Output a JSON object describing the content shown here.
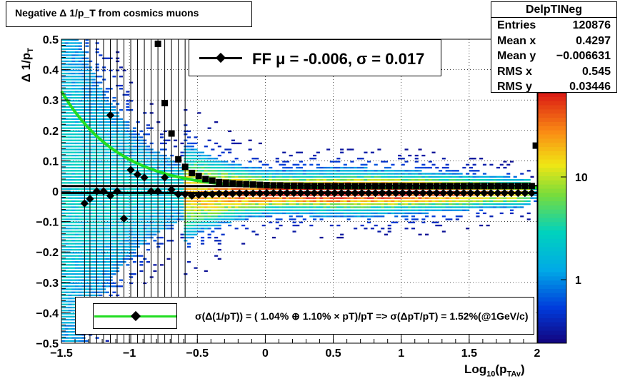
{
  "title": "Negative Δ 1/p_T from cosmics muons",
  "stats": {
    "name": "DelpTINeg",
    "rows": [
      {
        "label": "Entries",
        "value": "120876"
      },
      {
        "label": "Mean x",
        "value": "0.4297"
      },
      {
        "label": "Mean y",
        "value": "−0.006631"
      },
      {
        "label": "RMS x",
        "value": "0.545"
      },
      {
        "label": "RMS y",
        "value": "0.03446"
      }
    ]
  },
  "legend_top": "FF μ = -0.006, σ =   0.017",
  "legend_bottom": "σ(Δ(1/pT)) = ( 1.04% ⊕  1.10% × pT)/pT => σ(ΔpT/pT) =  1.52%(@1GeV/c)",
  "colors": {
    "fit_curve": "#22dd22",
    "markers": "#000000"
  },
  "chart_data": {
    "type": "heatmap",
    "title": "Negative Δ 1/p_T from cosmics muons",
    "xlabel": "Log10(pTAv)",
    "ylabel": "Δ 1/pT",
    "xlim": [
      -1.5,
      2
    ],
    "ylim": [
      -0.5,
      0.5
    ],
    "xticks": [
      "−1.5",
      "−1",
      "−0.5",
      "0",
      "0.5",
      "1",
      "1.5",
      "2"
    ],
    "yticks": [
      "−0.5",
      "−0.4",
      "−0.3",
      "−0.2",
      "−0.1",
      "0",
      "0.1",
      "0.2",
      "0.3",
      "0.4",
      "0.5"
    ],
    "colorbar_ticks": [
      "1",
      "10"
    ],
    "log_colorbar": true,
    "grid": true,
    "mean_points": {
      "x": [
        -1.33,
        -1.29,
        -1.24,
        -1.19,
        -1.14,
        -1.09,
        -1.04,
        -0.99,
        -0.94,
        -0.89,
        -0.84,
        -0.79,
        -0.74,
        -0.69,
        -0.64,
        -0.59,
        -0.54,
        -0.49,
        -0.44,
        -0.39,
        -0.34,
        -0.29,
        -0.24,
        -0.19,
        -0.14,
        -0.09,
        -0.04,
        0.01,
        0.06,
        0.11,
        0.16,
        0.21,
        0.26,
        0.31,
        0.36,
        0.41,
        0.46,
        0.51,
        0.56,
        0.61,
        0.66,
        0.71,
        0.76,
        0.81,
        0.86,
        0.91,
        0.96,
        1.01,
        1.06,
        1.11,
        1.16,
        1.21,
        1.26,
        1.31,
        1.36,
        1.41,
        1.46,
        1.51,
        1.56,
        1.61,
        1.66,
        1.71,
        1.76,
        1.81,
        1.86,
        1.91,
        1.96
      ],
      "y": [
        -0.04,
        -0.025,
        0.0,
        0.0,
        -0.015,
        0.0,
        -0.09,
        0.07,
        0.055,
        0.045,
        0.0,
        0.0,
        0.045,
        0.005,
        -0.01,
        -0.01,
        -0.015,
        -0.012,
        -0.01,
        -0.01,
        -0.008,
        -0.008,
        -0.008,
        -0.007,
        -0.007,
        -0.007,
        -0.007,
        -0.006,
        -0.006,
        -0.006,
        -0.006,
        -0.006,
        -0.006,
        -0.006,
        -0.006,
        -0.006,
        -0.006,
        -0.006,
        -0.006,
        -0.006,
        -0.006,
        -0.006,
        -0.006,
        -0.006,
        -0.006,
        -0.006,
        -0.006,
        -0.006,
        -0.006,
        -0.006,
        -0.006,
        -0.006,
        -0.006,
        -0.006,
        -0.006,
        -0.006,
        -0.006,
        -0.006,
        -0.006,
        -0.006,
        -0.006,
        -0.006,
        -0.006,
        -0.006,
        -0.006,
        -0.006,
        -0.006
      ]
    },
    "sigma_points": {
      "x": [
        -1.14,
        -0.79,
        -0.74,
        -0.69,
        -0.64,
        -0.59,
        -0.54,
        -0.49,
        -0.44,
        -0.39,
        -0.34,
        -0.29,
        -0.24,
        -0.19,
        -0.14,
        -0.09,
        -0.04,
        0.01,
        0.06,
        0.11,
        0.16,
        0.21,
        0.26,
        0.31,
        0.36,
        0.41,
        0.46,
        0.51,
        0.56,
        0.61,
        0.66,
        0.71,
        0.76,
        0.81,
        0.86,
        0.91,
        0.96,
        1.01,
        1.06,
        1.11,
        1.16,
        1.21,
        1.26,
        1.31,
        1.36,
        1.41,
        1.46,
        1.51,
        1.56,
        1.61,
        1.66,
        1.71,
        1.76,
        1.81,
        1.86,
        1.91,
        1.96,
        1.99
      ],
      "y": [
        0.25,
        0.485,
        0.29,
        0.19,
        0.105,
        0.08,
        0.06,
        0.05,
        0.04,
        0.035,
        0.03,
        0.028,
        0.026,
        0.024,
        0.023,
        0.022,
        0.021,
        0.02,
        0.019,
        0.019,
        0.018,
        0.018,
        0.018,
        0.017,
        0.017,
        0.017,
        0.017,
        0.017,
        0.017,
        0.017,
        0.017,
        0.017,
        0.017,
        0.017,
        0.017,
        0.017,
        0.017,
        0.017,
        0.017,
        0.017,
        0.017,
        0.017,
        0.017,
        0.017,
        0.017,
        0.017,
        0.017,
        0.017,
        0.017,
        0.017,
        0.017,
        0.017,
        0.017,
        0.017,
        0.017,
        0.017,
        0.017,
        0.15
      ]
    },
    "fit_curve": {
      "name": "σ(Δ(1/pT))",
      "formula": "sqrt(0.0104^2/p^2 + 0.011^2)",
      "x_range": [
        -1.5,
        2
      ]
    },
    "horizontal_lines": [
      0.017,
      -0.006
    ]
  }
}
